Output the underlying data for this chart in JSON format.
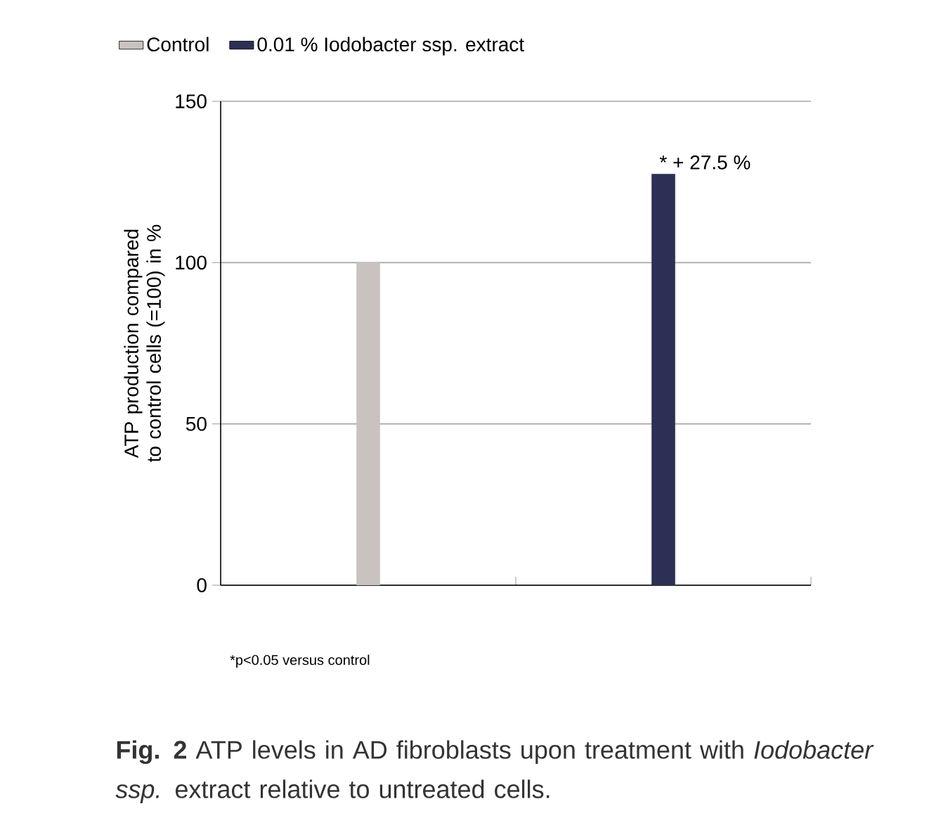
{
  "chart_data": {
    "type": "bar",
    "categories": [
      null,
      null
    ],
    "series": [
      {
        "name": "Control",
        "color": "#c8c3c0",
        "values": [
          100,
          null
        ]
      },
      {
        "name": "0.01 % Iodobacter ssp. extract",
        "color": "#2d2f55",
        "values": [
          null,
          127.5
        ]
      }
    ],
    "ylabel": "ATP production compared to control cells (=100) in %",
    "ylim": [
      0,
      150
    ],
    "yticks": [
      0,
      50,
      100,
      150
    ],
    "grid": "y",
    "legend": "top left",
    "annotations": [
      "*  + 27.5 %",
      "*p<0.05 versus control",
      "**Fig. 2**  ATP levels in AD fibroblasts upon treatment with *Iodobacter ssp.* extract relative to untreated cells."
    ]
  }
}
